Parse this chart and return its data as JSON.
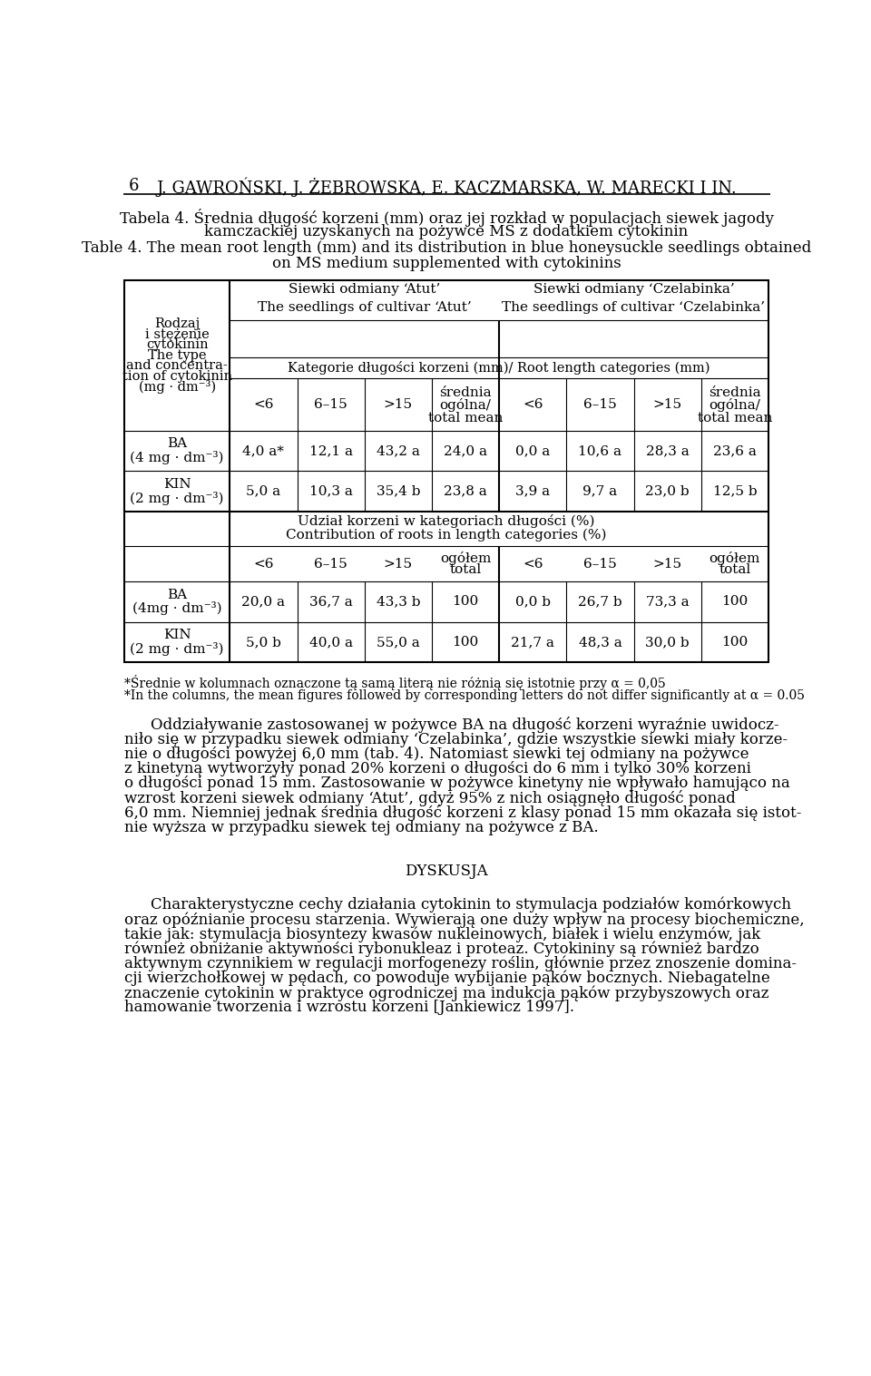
{
  "page_number": "6",
  "header": "J. GAWROŃSKI, J. ŻEBROWSKA, E. KACZMARSKA, W. MARECKI I IN.",
  "title_pl": "Tabela 4. Średnia długość korzeni (mm) oraz jej rozkład w populacjach siewek jagody",
  "title_pl2": "kamczackiej uzyskanych na pożywce MS z dodatkiem cytokinin",
  "title_en": "Table 4. The mean root length (mm) and its distribution in blue honeysuckle seedlings obtained",
  "title_en2": "on MS medium supplemented with cytokinins",
  "atut_header_pl": "Siewki odmiany ‘Atut’",
  "atut_header_en": "The seedlings of cultivar ‘Atut’",
  "czelabinka_header_pl": "Siewki odmiany ‘Czelabinka’",
  "czelabinka_header_en": "The seedlings of cultivar ‘Czelabinka’",
  "kategorie_header": "Kategorie długości korzeni (mm)/ Root length categories (mm)",
  "row_ba_label1": "BA",
  "row_ba_label2": "(4 mg · dm⁻³)",
  "row_kin_label1": "KIN",
  "row_kin_label2": "(2 mg · dm⁻³)",
  "ba_atut_lt6": "4,0 a*",
  "ba_atut_6_15": "12,1 a",
  "ba_atut_gt15": "43,2 a",
  "ba_atut_mean": "24,0 a",
  "ba_czel_lt6": "0,0 a",
  "ba_czel_6_15": "10,6 a",
  "ba_czel_gt15": "28,3 a",
  "ba_czel_mean": "23,6 a",
  "kin_atut_lt6": "5,0 a",
  "kin_atut_6_15": "10,3 a",
  "kin_atut_gt15": "35,4 b",
  "kin_atut_mean": "23,8 a",
  "kin_czel_lt6": "3,9 a",
  "kin_czel_6_15": "9,7 a",
  "kin_czel_gt15": "23,0 b",
  "kin_czel_mean": "12,5 b",
  "udzial_pl": "Udział korzeni w kategoriach długości (%)",
  "udzial_en": "Contribution of roots in length categories (%)",
  "ba2_atut_lt6": "20,0 a",
  "ba2_atut_6_15": "36,7 a",
  "ba2_atut_gt15": "43,3 b",
  "ba2_atut_total": "100",
  "ba2_czel_lt6": "0,0 b",
  "ba2_czel_6_15": "26,7 b",
  "ba2_czel_gt15": "73,3 a",
  "ba2_czel_total": "100",
  "kin2_atut_lt6": "5,0 b",
  "kin2_atut_6_15": "40,0 a",
  "kin2_atut_gt15": "55,0 a",
  "kin2_atut_total": "100",
  "kin2_czel_lt6": "21,7 a",
  "kin2_czel_6_15": "48,3 a",
  "kin2_czel_gt15": "30,0 b",
  "kin2_czel_total": "100",
  "row_ba2_label1": "BA",
  "row_ba2_label2": "(4mg · dm⁻³)",
  "row_kin2_label1": "KIN",
  "row_kin2_label2": "(2 mg · dm⁻³)",
  "footnote1": "*Średnie w kolumnach oznaczone tą samą literą nie różnią się istotnie przy α = 0,05",
  "footnote2": "*In the columns, the mean figures followed by corresponding letters do not differ significantly at α = 0.05",
  "para1_lines": [
    "Oddziaływanie zastosowanej w pożywce BA na długość korzeni wyraźnie uwidocz-",
    "niło się w przypadku siewek odmiany ‘Czelabinka’, gdzie wszystkie siewki miały korze-",
    "nie o długości powyżej 6,0 mm (tab. 4). Natomiast siewki tej odmiany na pożywce",
    "z kinetyną wytworzyły ponad 20% korzeni o długości do 6 mm i tylko 30% korzeni",
    "o długości ponad 15 mm. Zastosowanie w pożywce kinetyny nie wpływało hamująco na",
    "wzrost korzeni siewek odmiany ‘Atut’, gdyż 95% z nich osiągnęło długość ponad",
    "6,0 mm. Niemniej jednak średnia długość korzeni z klasy ponad 15 mm okazała się istot-",
    "nie wyższa w przypadku siewek tej odmiany na pożywce z BA."
  ],
  "dyskusja_header": "DYSKUSJA",
  "para2_lines": [
    "Charakterystyczne cechy działania cytokinin to stymulacja podziałów komórkowych",
    "oraz opóźnianie procesu starzenia. Wywierają one duży wpływ na procesy biochemiczne,",
    "takie jak: stymulacja biosyntezy kwasów nukleinowych, białek i wielu enzymów, jak",
    "również obniżanie aktywności rybonukleaz i proteaz. Cytokininy są również bardzo",
    "aktywnym czynnikiem w regulacji morfogenezy roślin, głównie przez znoszenie domina-",
    "cji wierzchołkowej w pędach, co powoduje wybijanie pąków bocznych. Niebagatelne",
    "znaczenie cytokinin w praktyce ogrodniczej ma indukcja pąków przybyszowych oraz",
    "hamowanie tworzenia i wzrostu korzeni [Jankiewicz 1997]."
  ]
}
